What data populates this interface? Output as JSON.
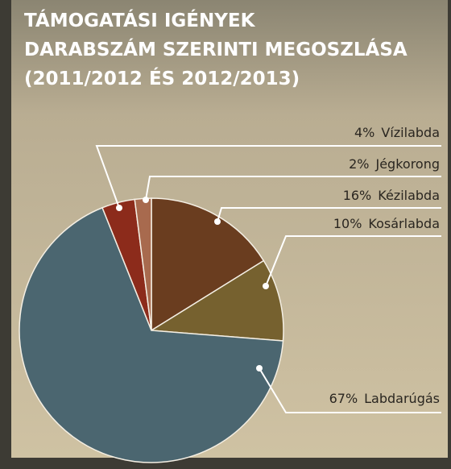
{
  "chart_data": {
    "type": "pie",
    "title": [
      "TÁMOGATÁSI IGÉNYEK",
      "DARABSZÁM SZERINTI MEGOSZLÁSA",
      "(2011/2012 ÉS 2012/2013)"
    ],
    "categories": [
      "Kézilabda",
      "Kosárlabda",
      "Labdarúgás",
      "Vízilabda",
      "Jégkorong"
    ],
    "values": [
      16,
      10,
      67,
      4,
      2
    ],
    "value_labels": [
      "16%",
      "10%",
      "67%",
      "4%",
      "2%"
    ],
    "colors": [
      "#6a3d1f",
      "#76612f",
      "#4b6670",
      "#8c2b1b",
      "#a86a4e"
    ]
  }
}
